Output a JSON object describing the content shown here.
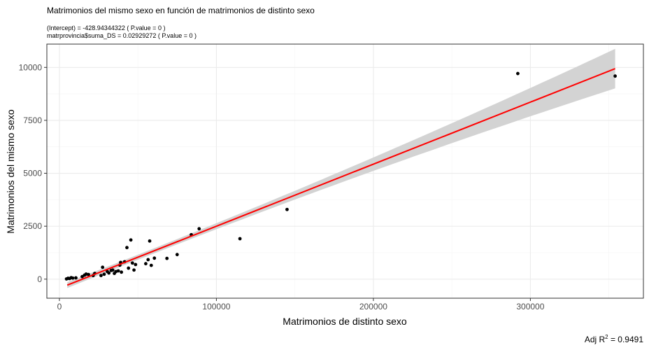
{
  "chart_data": {
    "type": "scatter",
    "title": "Matrimonios del mismo sexo en función de matrimonios de distinto sexo",
    "subtitle_lines": [
      "(Intercept) = -428.94344322 ( P.value = 0 )",
      "matrprovincia$suma_DS = 0.02929272 ( P.value = 0 )"
    ],
    "xlabel": "Matrimonios de distinto sexo",
    "ylabel": "Matrimonios del mismo sexo",
    "caption_prefix": "Adj R",
    "caption_sup": "2",
    "caption_suffix": " = 0.9491",
    "xlim": [
      -8000,
      372000
    ],
    "ylim": [
      -900,
      11100
    ],
    "x_ticks": [
      0,
      100000,
      200000,
      300000
    ],
    "x_tick_labels": [
      "0",
      "100000",
      "200000",
      "300000"
    ],
    "y_ticks": [
      0,
      2500,
      5000,
      7500,
      10000
    ],
    "y_tick_labels": [
      "0",
      "2500",
      "5000",
      "7500",
      "10000"
    ],
    "grid": true,
    "points": [
      [
        4500,
        10
      ],
      [
        5500,
        40
      ],
      [
        6500,
        30
      ],
      [
        7500,
        70
      ],
      [
        8500,
        50
      ],
      [
        10500,
        60
      ],
      [
        14500,
        120
      ],
      [
        16000,
        190
      ],
      [
        17000,
        240
      ],
      [
        18500,
        220
      ],
      [
        21500,
        170
      ],
      [
        22500,
        270
      ],
      [
        26500,
        170
      ],
      [
        27500,
        560
      ],
      [
        28500,
        230
      ],
      [
        30500,
        360
      ],
      [
        31500,
        290
      ],
      [
        33000,
        410
      ],
      [
        34000,
        430
      ],
      [
        35000,
        270
      ],
      [
        36000,
        360
      ],
      [
        37500,
        390
      ],
      [
        38500,
        660
      ],
      [
        39000,
        790
      ],
      [
        39500,
        330
      ],
      [
        41500,
        820
      ],
      [
        43000,
        1490
      ],
      [
        44000,
        520
      ],
      [
        45500,
        1850
      ],
      [
        46500,
        760
      ],
      [
        47500,
        430
      ],
      [
        48500,
        690
      ],
      [
        55000,
        730
      ],
      [
        56500,
        920
      ],
      [
        57500,
        1800
      ],
      [
        58500,
        650
      ],
      [
        60500,
        990
      ],
      [
        68500,
        980
      ],
      [
        75000,
        1160
      ],
      [
        84000,
        2100
      ],
      [
        89000,
        2380
      ],
      [
        115000,
        1910
      ],
      [
        145000,
        3290
      ],
      [
        292000,
        9710
      ],
      [
        354000,
        9590
      ]
    ],
    "fit_line": {
      "x_start": 5000,
      "x_end": 354000,
      "intercept": -428.94344322,
      "slope": 0.02929272
    },
    "colors": {
      "points": "#000000",
      "fit": "#ff0000",
      "band": "#d3d3d3",
      "grid_major": "#ebebeb",
      "grid_minor": "#f5f5f5",
      "panel_border": "#333333"
    }
  }
}
